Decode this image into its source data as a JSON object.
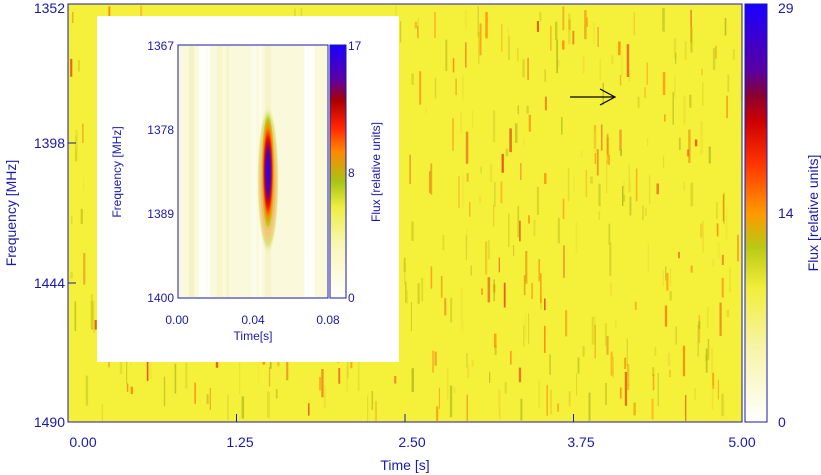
{
  "chart_data": [
    {
      "type": "heatmap",
      "xlabel": "Time [s]",
      "ylabel": "Frequency [MHz]",
      "colorbar_label": "Flux [relative units]",
      "x_ticks": [
        "0.00",
        "1.25",
        "2.50",
        "3.75",
        "5.00"
      ],
      "y_ticks": [
        "1352",
        "1398",
        "1444",
        "1490"
      ],
      "colorbar_ticks": [
        "0",
        "14",
        "29"
      ],
      "xlim": [
        0,
        5
      ],
      "ylim": [
        1352,
        1490
      ],
      "clim": [
        0,
        29
      ],
      "annotation": {
        "type": "arrow",
        "points_to_time": 3.95,
        "points_to_frequency": 1383
      }
    },
    {
      "type": "heatmap",
      "inset": true,
      "xlabel": "Time[s]",
      "ylabel": "Frequency [MHz]",
      "colorbar_label": "Flux [relative units]",
      "x_ticks": [
        "0.00",
        "0.04",
        "0.08"
      ],
      "y_ticks": [
        "1367",
        "1378",
        "1389",
        "1400"
      ],
      "colorbar_ticks": [
        "0",
        "8",
        "17"
      ],
      "xlim": [
        0,
        0.08
      ],
      "ylim": [
        1367,
        1400
      ],
      "clim": [
        0,
        17
      ],
      "pulse": {
        "time": 0.047,
        "frequency": 1384,
        "peak_flux": 17
      }
    }
  ],
  "colors": {
    "axis": "#1a1aa8",
    "background": "#f5f03a"
  }
}
